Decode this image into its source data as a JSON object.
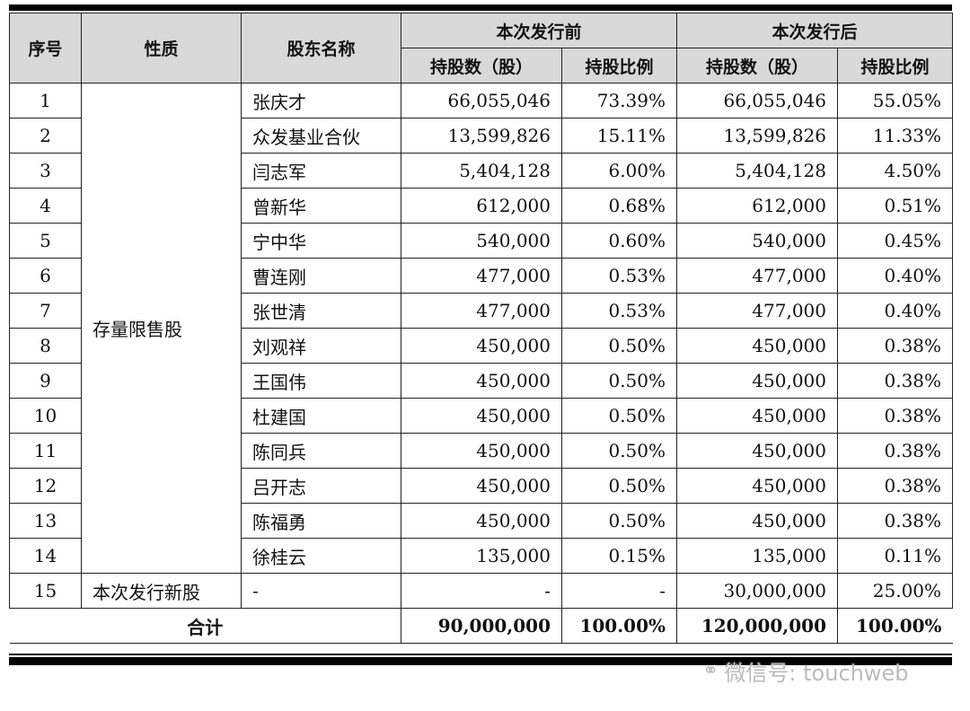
{
  "header": {
    "seq": "序号",
    "nature": "性质",
    "holder": "股东名称",
    "before": "本次发行前",
    "after": "本次发行后",
    "shares": "持股数（股）",
    "ratio": "持股比例"
  },
  "group_label": "存量限售股",
  "rows": [
    {
      "no": "1",
      "name": "张庆才",
      "b_shares": "66,055,046",
      "b_ratio": "73.39%",
      "a_shares": "66,055,046",
      "a_ratio": "55.05%"
    },
    {
      "no": "2",
      "name": "众发基业合伙",
      "b_shares": "13,599,826",
      "b_ratio": "15.11%",
      "a_shares": "13,599,826",
      "a_ratio": "11.33%"
    },
    {
      "no": "3",
      "name": "闫志军",
      "b_shares": "5,404,128",
      "b_ratio": "6.00%",
      "a_shares": "5,404,128",
      "a_ratio": "4.50%"
    },
    {
      "no": "4",
      "name": "曾新华",
      "b_shares": "612,000",
      "b_ratio": "0.68%",
      "a_shares": "612,000",
      "a_ratio": "0.51%"
    },
    {
      "no": "5",
      "name": "宁中华",
      "b_shares": "540,000",
      "b_ratio": "0.60%",
      "a_shares": "540,000",
      "a_ratio": "0.45%"
    },
    {
      "no": "6",
      "name": "曹连刚",
      "b_shares": "477,000",
      "b_ratio": "0.53%",
      "a_shares": "477,000",
      "a_ratio": "0.40%"
    },
    {
      "no": "7",
      "name": "张世清",
      "b_shares": "477,000",
      "b_ratio": "0.53%",
      "a_shares": "477,000",
      "a_ratio": "0.40%"
    },
    {
      "no": "8",
      "name": "刘观祥",
      "b_shares": "450,000",
      "b_ratio": "0.50%",
      "a_shares": "450,000",
      "a_ratio": "0.38%"
    },
    {
      "no": "9",
      "name": "王国伟",
      "b_shares": "450,000",
      "b_ratio": "0.50%",
      "a_shares": "450,000",
      "a_ratio": "0.38%"
    },
    {
      "no": "10",
      "name": "杜建国",
      "b_shares": "450,000",
      "b_ratio": "0.50%",
      "a_shares": "450,000",
      "a_ratio": "0.38%"
    },
    {
      "no": "11",
      "name": "陈同兵",
      "b_shares": "450,000",
      "b_ratio": "0.50%",
      "a_shares": "450,000",
      "a_ratio": "0.38%"
    },
    {
      "no": "12",
      "name": "吕开志",
      "b_shares": "450,000",
      "b_ratio": "0.50%",
      "a_shares": "450,000",
      "a_ratio": "0.38%"
    },
    {
      "no": "13",
      "name": "陈福勇",
      "b_shares": "450,000",
      "b_ratio": "0.50%",
      "a_shares": "450,000",
      "a_ratio": "0.38%"
    },
    {
      "no": "14",
      "name": "徐桂云",
      "b_shares": "135,000",
      "b_ratio": "0.15%",
      "a_shares": "135,000",
      "a_ratio": "0.11%"
    }
  ],
  "new_row": {
    "no": "15",
    "nature": "本次发行新股",
    "name": "-",
    "b_shares": "-",
    "b_ratio": "-",
    "a_shares": "30,000,000",
    "a_ratio": "25.00%"
  },
  "total": {
    "label": "合计",
    "b_shares": "90,000,000",
    "b_ratio": "100.00%",
    "a_shares": "120,000,000",
    "a_ratio": "100.00%"
  },
  "watermark": {
    "icon": "wechat-icon",
    "text": "微信号: touchweb"
  }
}
